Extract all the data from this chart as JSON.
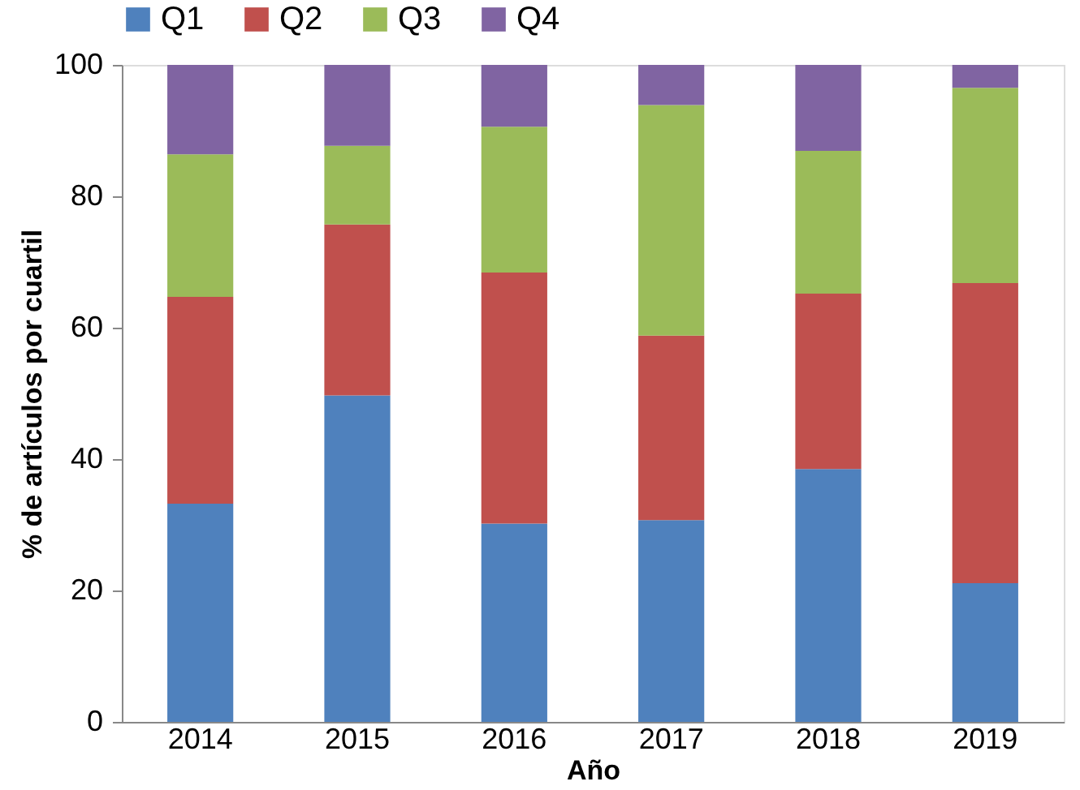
{
  "chart_data": {
    "type": "bar",
    "stacked": true,
    "xlabel": "Año",
    "ylabel": "% de artículos por cuartil",
    "categories": [
      "2014",
      "2015",
      "2016",
      "2017",
      "2018",
      "2019"
    ],
    "series": [
      {
        "name": "Q1",
        "color": "#4f81bd",
        "values": [
          33.2,
          49.7,
          30.2,
          30.7,
          38.5,
          21.1
        ]
      },
      {
        "name": "Q2",
        "color": "#c0504d",
        "values": [
          31.5,
          26.0,
          38.2,
          28.1,
          26.7,
          45.7
        ]
      },
      {
        "name": "Q3",
        "color": "#9bbb59",
        "values": [
          21.7,
          12.0,
          22.2,
          35.1,
          21.7,
          29.7
        ]
      },
      {
        "name": "Q4",
        "color": "#8064a2",
        "values": [
          13.6,
          12.3,
          9.4,
          6.1,
          13.1,
          3.5
        ]
      }
    ],
    "ylim": [
      0,
      100
    ],
    "yticks": [
      0,
      20,
      40,
      60,
      80,
      100
    ],
    "grid": false,
    "legend": "top"
  }
}
